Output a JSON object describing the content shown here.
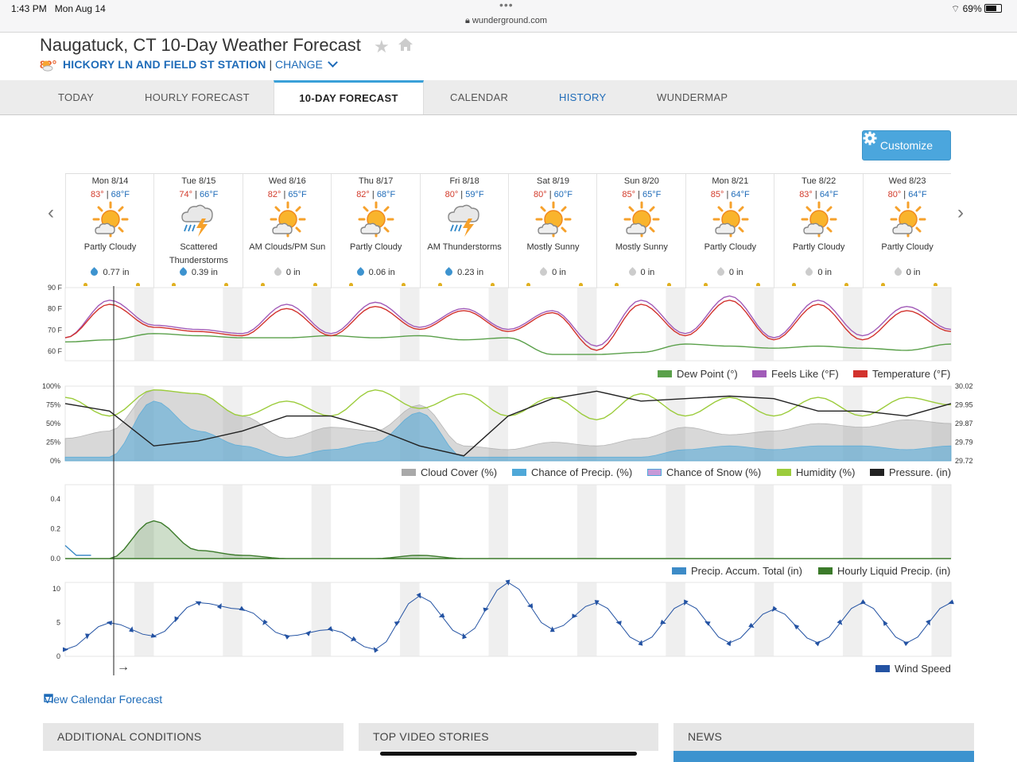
{
  "status": {
    "time": "1:43 PM",
    "date": "Mon Aug 14",
    "url": "wunderground.com",
    "battery": "69%"
  },
  "header": {
    "title": "Naugatuck, CT 10-Day Weather Forecast",
    "current_temp": "82°",
    "station": "HICKORY LN AND FIELD ST STATION",
    "separator": "|",
    "change": "CHANGE"
  },
  "tabs": [
    {
      "label": "TODAY"
    },
    {
      "label": "HOURLY FORECAST"
    },
    {
      "label": "10-DAY FORECAST"
    },
    {
      "label": "CALENDAR"
    },
    {
      "label": "HISTORY"
    },
    {
      "label": "WUNDERMAP"
    }
  ],
  "customize_label": "Customize",
  "days": [
    {
      "date": "Mon 8/14",
      "high": "83°",
      "low": "68°F",
      "icon": "partly-cloudy-icon",
      "condition": "Partly Cloudy",
      "precip": "0.77 in",
      "rain": true
    },
    {
      "date": "Tue 8/15",
      "high": "74°",
      "low": "66°F",
      "icon": "thunderstorm-icon",
      "condition": "Scattered Thunderstorms",
      "precip": "0.39 in",
      "rain": true
    },
    {
      "date": "Wed 8/16",
      "high": "82°",
      "low": "65°F",
      "icon": "partly-cloudy-icon",
      "condition": "AM Clouds/PM Sun",
      "precip": "0 in",
      "rain": false
    },
    {
      "date": "Thu 8/17",
      "high": "82°",
      "low": "68°F",
      "icon": "partly-cloudy-icon",
      "condition": "Partly Cloudy",
      "precip": "0.06 in",
      "rain": true
    },
    {
      "date": "Fri 8/18",
      "high": "80°",
      "low": "59°F",
      "icon": "thunderstorm-icon",
      "condition": "AM Thunderstorms",
      "precip": "0.23 in",
      "rain": true
    },
    {
      "date": "Sat 8/19",
      "high": "80°",
      "low": "60°F",
      "icon": "partly-cloudy-icon",
      "condition": "Mostly Sunny",
      "precip": "0 in",
      "rain": false
    },
    {
      "date": "Sun 8/20",
      "high": "85°",
      "low": "65°F",
      "icon": "partly-cloudy-icon",
      "condition": "Mostly Sunny",
      "precip": "0 in",
      "rain": false
    },
    {
      "date": "Mon 8/21",
      "high": "85°",
      "low": "64°F",
      "icon": "partly-cloudy-icon",
      "condition": "Partly Cloudy",
      "precip": "0 in",
      "rain": false
    },
    {
      "date": "Tue 8/22",
      "high": "83°",
      "low": "64°F",
      "icon": "partly-cloudy-icon",
      "condition": "Partly Cloudy",
      "precip": "0 in",
      "rain": false
    },
    {
      "date": "Wed 8/23",
      "high": "80°",
      "low": "64°F",
      "icon": "partly-cloudy-icon",
      "condition": "Partly Cloudy",
      "precip": "0 in",
      "rain": false
    }
  ],
  "colors": {
    "dew": "#5aa04a",
    "feels": "#a15bb8",
    "temp": "#d2322d",
    "cloud": "#a9a9a9",
    "precip_chance": "#4fa8d8",
    "snow": "#c79ad8",
    "humidity": "#9ccc3c",
    "pressure": "#222222",
    "accum": "#3d8bc7",
    "liquid": "#3b7a2a",
    "wind": "#2453a3"
  },
  "chart_data": [
    {
      "type": "line",
      "x": [
        0,
        12,
        24,
        36,
        48,
        60,
        72,
        84,
        96,
        108,
        120,
        132,
        144,
        156,
        168,
        180,
        192,
        204,
        216,
        228,
        240
      ],
      "ylim": [
        55,
        90
      ],
      "yticks": [
        "90 F",
        "80 F",
        "70 F",
        "60 F"
      ],
      "series": [
        {
          "name": "Dew Point (°)",
          "values": [
            64,
            65,
            68,
            67,
            66,
            66,
            67,
            66,
            67,
            65,
            66,
            58,
            58,
            59,
            63,
            62,
            61,
            62,
            61,
            60,
            63
          ]
        },
        {
          "name": "Feels Like (°F)",
          "values": [
            66,
            84,
            72,
            70,
            68,
            82,
            68,
            83,
            71,
            80,
            70,
            79,
            62,
            84,
            68,
            86,
            66,
            84,
            67,
            81,
            70
          ]
        },
        {
          "name": "Temperature (°F)",
          "values": [
            66,
            82,
            71,
            69,
            67,
            80,
            67,
            81,
            70,
            79,
            69,
            78,
            60,
            82,
            67,
            84,
            65,
            82,
            65,
            79,
            69
          ]
        }
      ]
    },
    {
      "type": "area",
      "x": [
        0,
        12,
        24,
        36,
        48,
        60,
        72,
        84,
        96,
        108,
        120,
        132,
        144,
        156,
        168,
        180,
        192,
        204,
        216,
        228,
        240
      ],
      "ylim": [
        0,
        100
      ],
      "yticks": [
        "100%",
        "75%",
        "50%",
        "25%",
        "0%"
      ],
      "y2ticks": [
        "30.02",
        "29.95",
        "29.87",
        "29.79",
        "29.72"
      ],
      "series": [
        {
          "name": "Cloud Cover (%)",
          "values": [
            30,
            40,
            95,
            90,
            60,
            30,
            45,
            40,
            75,
            20,
            15,
            25,
            20,
            30,
            45,
            35,
            40,
            50,
            45,
            55,
            50
          ]
        },
        {
          "name": "Chance of Precip. (%)",
          "values": [
            5,
            5,
            80,
            40,
            20,
            5,
            15,
            25,
            65,
            5,
            5,
            5,
            5,
            5,
            15,
            20,
            15,
            20,
            20,
            15,
            20
          ]
        },
        {
          "name": "Chance of Snow (%)",
          "values": [
            0,
            0,
            0,
            0,
            0,
            0,
            0,
            0,
            0,
            0,
            0,
            0,
            0,
            0,
            0,
            0,
            0,
            0,
            0,
            0,
            0
          ]
        },
        {
          "name": "Humidity (%)",
          "values": [
            85,
            60,
            95,
            90,
            60,
            80,
            60,
            95,
            70,
            90,
            60,
            85,
            55,
            90,
            60,
            85,
            60,
            85,
            60,
            85,
            75
          ]
        },
        {
          "name": "Pressure. (in)",
          "values": [
            29.95,
            29.92,
            29.78,
            29.8,
            29.84,
            29.9,
            29.9,
            29.85,
            29.78,
            29.74,
            29.9,
            29.97,
            30.0,
            29.96,
            29.97,
            29.98,
            29.97,
            29.92,
            29.92,
            29.9,
            29.95
          ]
        }
      ]
    },
    {
      "type": "area",
      "x": [
        0,
        12,
        24,
        36,
        48,
        60,
        72,
        84,
        96,
        108,
        120,
        132,
        144,
        156,
        168,
        180,
        192,
        204,
        216,
        228,
        240
      ],
      "ylim": [
        0,
        0.45
      ],
      "yticks": [
        "0.4",
        "0.2",
        "0.0"
      ],
      "series": [
        {
          "name": "Precip. Accum. Total (in)",
          "values": [
            0.08,
            0,
            0,
            0,
            0,
            0,
            0,
            0,
            0,
            0,
            0,
            0,
            0,
            0,
            0,
            0,
            0,
            0,
            0,
            0,
            0
          ]
        },
        {
          "name": "Hourly Liquid Precip. (in)",
          "values": [
            0,
            0,
            0.23,
            0.05,
            0.02,
            0,
            0,
            0,
            0.02,
            0,
            0,
            0,
            0,
            0,
            0,
            0,
            0,
            0,
            0,
            0,
            0
          ]
        }
      ]
    },
    {
      "type": "line",
      "x": [
        0,
        12,
        24,
        36,
        48,
        60,
        72,
        84,
        96,
        108,
        120,
        132,
        144,
        156,
        168,
        180,
        192,
        204,
        216,
        228,
        240
      ],
      "ylim": [
        0,
        11
      ],
      "yticks": [
        "10",
        "5",
        "0"
      ],
      "series": [
        {
          "name": "Wind Speed",
          "values": [
            1,
            5,
            3,
            8,
            7,
            3,
            4,
            1,
            9,
            3,
            11,
            4,
            8,
            2,
            8,
            2,
            7,
            2,
            8,
            2,
            8
          ]
        }
      ]
    }
  ],
  "footer": {
    "view_calendar": "View Calendar Forecast",
    "scroll_arrow": "→",
    "panels": [
      "ADDITIONAL CONDITIONS",
      "TOP VIDEO STORIES",
      "NEWS"
    ]
  }
}
